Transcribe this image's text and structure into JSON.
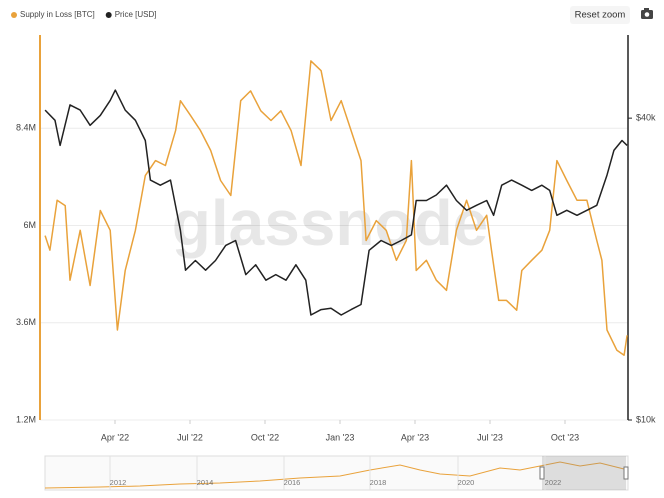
{
  "chart_data": {
    "type": "line",
    "watermark": "glassnode",
    "reset_button": "Reset zoom",
    "legend": "top-left",
    "grid": true,
    "xlim": [
      2022.0,
      2023.96
    ],
    "xticks": [
      {
        "value": 2022.25,
        "label": "Apr '22"
      },
      {
        "value": 2022.5,
        "label": "Jul '22"
      },
      {
        "value": 2022.75,
        "label": "Oct '22"
      },
      {
        "value": 2023.0,
        "label": "Jan '23"
      },
      {
        "value": 2023.25,
        "label": "Apr '23"
      },
      {
        "value": 2023.5,
        "label": "Jul '23"
      },
      {
        "value": 2023.75,
        "label": "Oct '23"
      }
    ],
    "ylim": [
      1200000,
      10700000
    ],
    "yticks": [
      {
        "value": 1200000,
        "label": "1.2M"
      },
      {
        "value": 3600000,
        "label": "3.6M"
      },
      {
        "value": 6000000,
        "label": "6M"
      },
      {
        "value": 8400000,
        "label": "8.4M"
      }
    ],
    "y2lim": [
      10000,
      58600
    ],
    "y2scale": "log",
    "y2ticks": [
      {
        "value": 10000,
        "label": "$10k"
      },
      {
        "value": 40000,
        "label": "$40k"
      }
    ],
    "series": [
      {
        "name": "Supply in Loss [BTC]",
        "color": "#e9a23b",
        "x": [
          2022.017,
          2022.033,
          2022.057,
          2022.084,
          2022.1,
          2022.134,
          2022.167,
          2022.201,
          2022.234,
          2022.258,
          2022.284,
          2022.318,
          2022.351,
          2022.385,
          2022.418,
          2022.452,
          2022.468,
          2022.502,
          2022.535,
          2022.569,
          2022.602,
          2022.636,
          2022.669,
          2022.702,
          2022.736,
          2022.77,
          2022.803,
          2022.837,
          2022.87,
          2022.903,
          2022.937,
          2022.97,
          2023.004,
          2023.037,
          2023.07,
          2023.087,
          2023.121,
          2023.154,
          2023.188,
          2023.221,
          2023.238,
          2023.254,
          2023.288,
          2023.321,
          2023.355,
          2023.388,
          2023.422,
          2023.455,
          2023.489,
          2023.505,
          2023.529,
          2023.555,
          2023.589,
          2023.606,
          2023.639,
          2023.673,
          2023.699,
          2023.723,
          2023.756,
          2023.79,
          2023.823,
          2023.856,
          2023.873,
          2023.89,
          2023.923,
          2023.947,
          2023.957
        ],
        "values": [
          5750000,
          5390000,
          6620000,
          6490000,
          4650000,
          5880000,
          4520000,
          6370000,
          5880000,
          3420000,
          4890000,
          5880000,
          7230000,
          7600000,
          7480000,
          8340000,
          9080000,
          8710000,
          8340000,
          7850000,
          7110000,
          6740000,
          9080000,
          9320000,
          8830000,
          8590000,
          8830000,
          8340000,
          7480000,
          10060000,
          9820000,
          8590000,
          9080000,
          8340000,
          7600000,
          5630000,
          6120000,
          5880000,
          5140000,
          5630000,
          7600000,
          4890000,
          5140000,
          4650000,
          4400000,
          5880000,
          6620000,
          5880000,
          6250000,
          5390000,
          4150000,
          4150000,
          3910000,
          4890000,
          5140000,
          5390000,
          5880000,
          7600000,
          7110000,
          6620000,
          6620000,
          5630000,
          5140000,
          3420000,
          2920000,
          2800000,
          3290000
        ]
      },
      {
        "name": "Price [USD]",
        "color": "#222222",
        "axis": "y2",
        "x": [
          2022.017,
          2022.05,
          2022.067,
          2022.1,
          2022.134,
          2022.167,
          2022.201,
          2022.234,
          2022.251,
          2022.284,
          2022.318,
          2022.351,
          2022.368,
          2022.401,
          2022.435,
          2022.468,
          2022.485,
          2022.518,
          2022.552,
          2022.585,
          2022.619,
          2022.652,
          2022.686,
          2022.719,
          2022.753,
          2022.786,
          2022.82,
          2022.853,
          2022.886,
          2022.903,
          2022.937,
          2022.97,
          2023.004,
          2023.037,
          2023.07,
          2023.097,
          2023.137,
          2023.171,
          2023.204,
          2023.238,
          2023.254,
          2023.288,
          2023.321,
          2023.355,
          2023.388,
          2023.422,
          2023.455,
          2023.489,
          2023.512,
          2023.539,
          2023.572,
          2023.606,
          2023.639,
          2023.673,
          2023.699,
          2023.723,
          2023.756,
          2023.79,
          2023.823,
          2023.856,
          2023.89,
          2023.913,
          2023.94,
          2023.957
        ],
        "values": [
          41500,
          39600,
          35300,
          42500,
          41500,
          38700,
          40500,
          43400,
          45500,
          41500,
          39600,
          36100,
          30100,
          29400,
          30100,
          23900,
          19900,
          20800,
          19900,
          20800,
          22300,
          22800,
          19500,
          20400,
          19000,
          19500,
          19000,
          20400,
          19000,
          16200,
          16600,
          16700,
          16200,
          16600,
          17000,
          21800,
          22800,
          22300,
          22800,
          23400,
          27400,
          27400,
          28100,
          29400,
          27400,
          26200,
          26800,
          27400,
          25600,
          29400,
          30100,
          29400,
          28700,
          29400,
          28700,
          25600,
          26200,
          25600,
          26200,
          26800,
          30800,
          34500,
          36100,
          35300
        ]
      }
    ],
    "navigator": {
      "labels": [
        "2012",
        "2014",
        "2016",
        "2018",
        "2020",
        "2022"
      ]
    }
  }
}
